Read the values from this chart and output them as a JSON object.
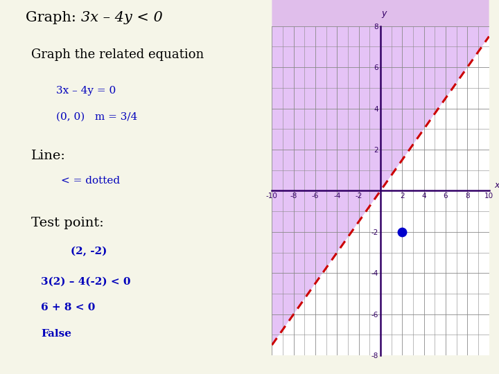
{
  "bg_color": "#f5f5e8",
  "left_panel_color": "#c8d890",
  "text_color_black": "#111111",
  "text_color_blue": "#0000bb",
  "xlim": [
    -10,
    10
  ],
  "ylim": [
    -8,
    8
  ],
  "xticks": [
    -10,
    -8,
    -6,
    -4,
    -2,
    2,
    4,
    6,
    8,
    10
  ],
  "yticks": [
    -8,
    -6,
    -4,
    -2,
    2,
    4,
    6,
    8
  ],
  "grid_color": "#888888",
  "axis_color": "#330066",
  "line_color": "#cc0000",
  "shade_color": "#cc88ee",
  "shade_alpha": 0.5,
  "dot_color": "#0000cc",
  "dot_x": 2,
  "dot_y": -2,
  "slope": 0.75
}
